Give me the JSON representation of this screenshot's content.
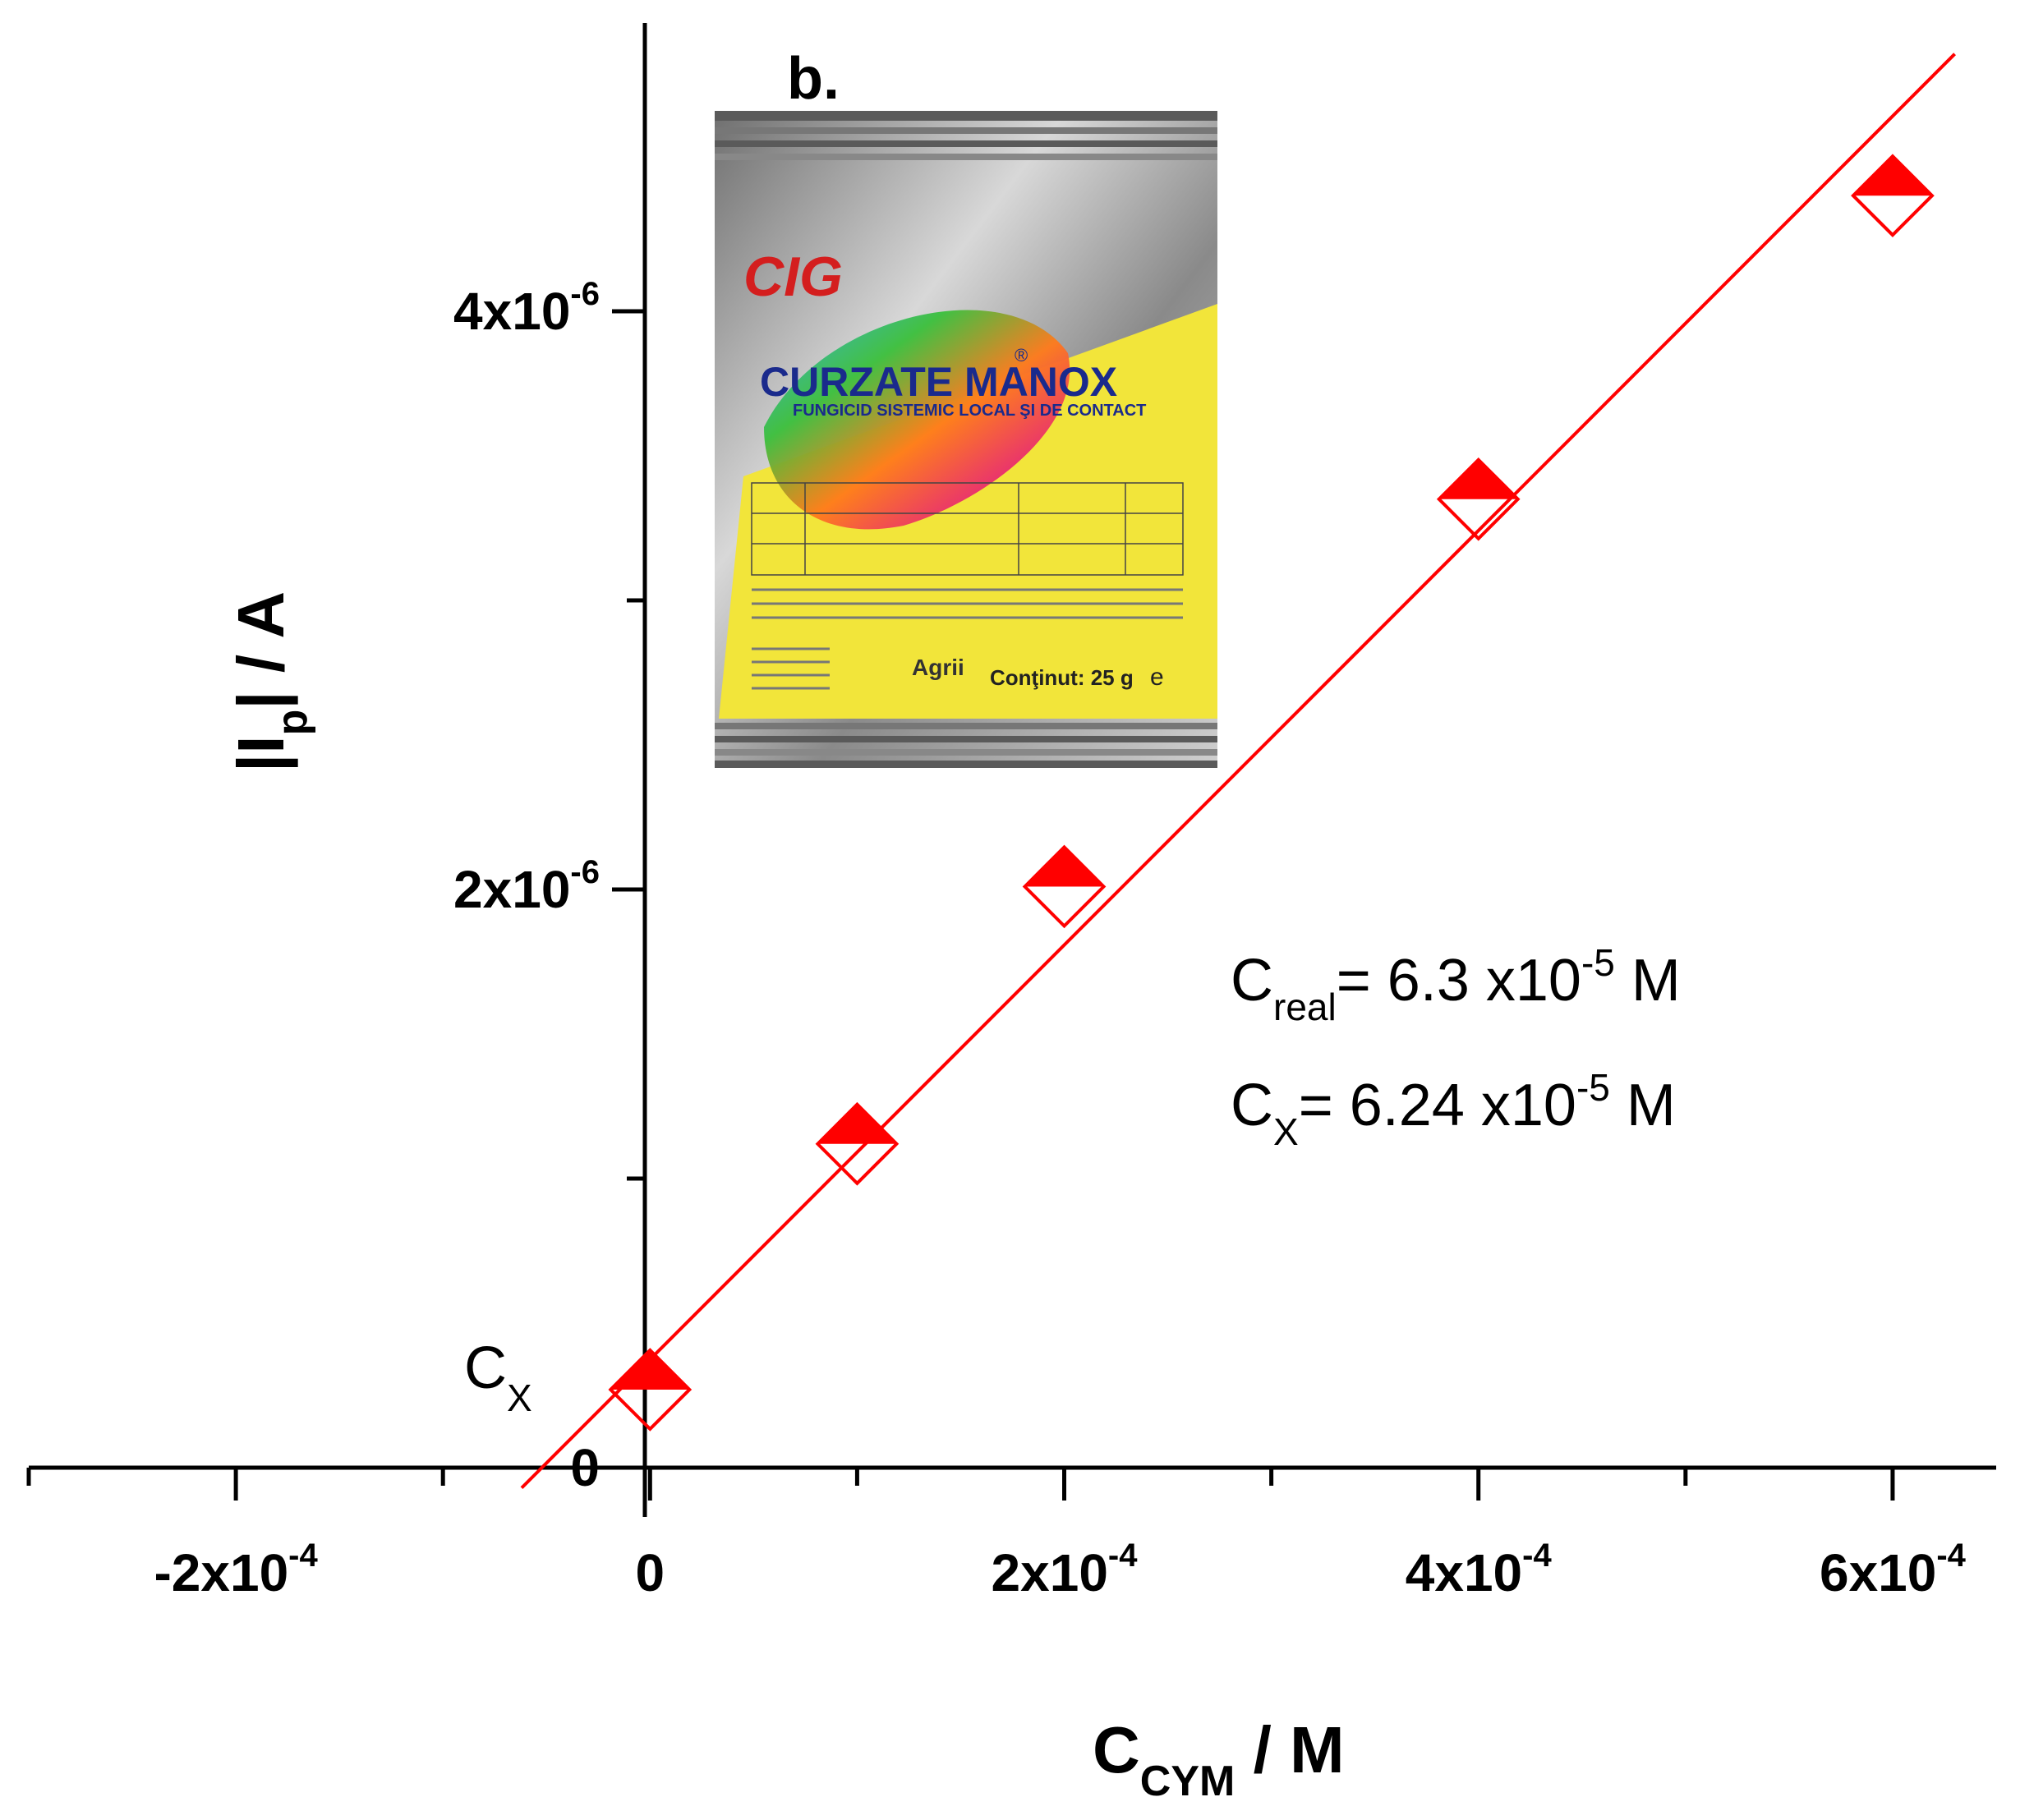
{
  "chart_data": {
    "type": "scatter",
    "panel_label": "b.",
    "xlabel": {
      "main": "C",
      "sub": "CYM",
      "rest": " / M"
    },
    "ylabel": {
      "main": "|I",
      "sub": "p",
      "rest": "| / A"
    },
    "xlim": [
      -0.0003,
      0.00065
    ],
    "ylim": [
      0,
      5e-06
    ],
    "xticks": [
      {
        "value": -0.0002,
        "mant": "-2x10",
        "exp": "-4"
      },
      {
        "value": 0,
        "mant": "0",
        "exp": ""
      },
      {
        "value": 0.0002,
        "mant": "2x10",
        "exp": "-4"
      },
      {
        "value": 0.0004,
        "mant": "4x10",
        "exp": "-4"
      },
      {
        "value": 0.0006,
        "mant": "6x10",
        "exp": "-4"
      }
    ],
    "xminor": [
      -0.0003,
      -0.0001,
      0.0001,
      0.0003,
      0.0005
    ],
    "yticks": [
      {
        "value": 0,
        "mant": "0",
        "exp": ""
      },
      {
        "value": 2e-06,
        "mant": "2x10",
        "exp": "-6"
      },
      {
        "value": 4e-06,
        "mant": "4x10",
        "exp": "-6"
      }
    ],
    "yminor": [
      1e-06,
      3e-06
    ],
    "series": [
      {
        "color": "#ff0000",
        "marker": "diamond-half-filled-top",
        "x": [
          0,
          0.0001,
          0.0002,
          0.0004,
          0.0006
        ],
        "y": [
          2.7e-07,
          1.12e-06,
          2.01e-06,
          3.35e-06,
          4.4e-06
        ]
      }
    ],
    "fit_line": {
      "color": "#ff0000",
      "x": [
        -6.2e-05,
        0.00063
      ],
      "y": [
        -7e-08,
        4.89e-06
      ]
    },
    "annotations": [
      {
        "main": "C",
        "sub": "real",
        "rest": "= 6.3 x10",
        "exp": "-5",
        "tail": " M"
      },
      {
        "main": "C",
        "sub": "X",
        "rest": "= 6.24 x10",
        "exp": "-5",
        "tail": " M"
      }
    ],
    "intercept_label": {
      "main": "C",
      "sub": "X"
    }
  },
  "inset": {
    "brand": "CURZATE MANOX",
    "registered": "®",
    "subtitle": "FUNGICID SISTEMIC LOCAL ŞI DE CONTACT",
    "logo": "CIG",
    "content": "Conţinut: 25 g",
    "estimate": "e",
    "distributor": "Agrii",
    "colors": {
      "foil": "#a8a8a8",
      "label": "#f2e53a",
      "brand_text": "#1a2a8c"
    }
  }
}
